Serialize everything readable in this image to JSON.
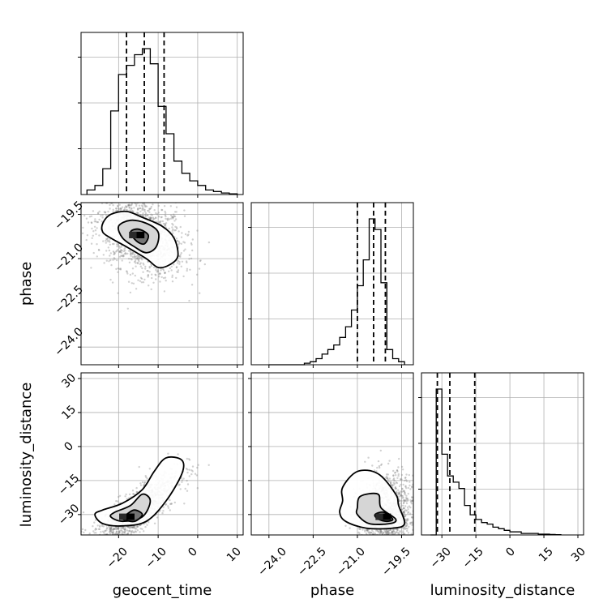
{
  "chart_data": {
    "type": "corner",
    "parameters": [
      "geocent_time",
      "phase",
      "luminosity_distance"
    ],
    "axis_labels": {
      "geocent_time": "geocent_time",
      "phase": "phase",
      "luminosity_distance": "luminosity_distance"
    },
    "ranges": {
      "geocent_time": [
        -29.5,
        11.5
      ],
      "phase": [
        -24.6,
        -19.1
      ],
      "luminosity_distance": [
        -39,
        32.5
      ]
    },
    "ticks": {
      "geocent_time": [
        -20,
        -10,
        0,
        10
      ],
      "phase": [
        -24.0,
        -22.5,
        -21.0,
        -19.5
      ],
      "luminosity_distance": [
        -30,
        -15,
        0,
        15,
        30
      ]
    },
    "tick_labels": {
      "geocent_time": [
        "−20",
        "−10",
        "0",
        "10"
      ],
      "phase": [
        "−24.0",
        "−22.5",
        "−21.0",
        "−19.5"
      ],
      "luminosity_distance": [
        "−30",
        "−15",
        "0",
        "15",
        "30"
      ]
    },
    "quantiles": {
      "geocent_time": [
        -18.0,
        -13.5,
        -8.5
      ],
      "phase": [
        -21.0,
        -20.45,
        -20.05
      ],
      "luminosity_distance": [
        -32.0,
        -26.5,
        -15.5
      ]
    },
    "histograms": {
      "geocent_time": {
        "edges": [
          -28,
          -26,
          -24,
          -22,
          -20,
          -18,
          -16,
          -14,
          -12,
          -10,
          -8,
          -6,
          -4,
          -2,
          0,
          2,
          4,
          6,
          8,
          10
        ],
        "counts": [
          0.03,
          0.06,
          0.17,
          0.55,
          0.79,
          0.85,
          0.92,
          0.96,
          0.86,
          0.58,
          0.4,
          0.22,
          0.14,
          0.09,
          0.06,
          0.03,
          0.02,
          0.01,
          0.005
        ]
      },
      "phase": {
        "edges": [
          -24.0,
          -23.8,
          -23.6,
          -23.4,
          -23.2,
          -23.0,
          -22.8,
          -22.6,
          -22.4,
          -22.2,
          -22.0,
          -21.8,
          -21.6,
          -21.4,
          -21.2,
          -21.0,
          -20.8,
          -20.6,
          -20.4,
          -20.2,
          -20.0,
          -19.8,
          -19.6,
          -19.4
        ],
        "counts": [
          0.0,
          0.0,
          0.0,
          0.0,
          0.0,
          0.0,
          0.01,
          0.02,
          0.04,
          0.07,
          0.1,
          0.13,
          0.18,
          0.25,
          0.36,
          0.52,
          0.69,
          0.96,
          0.89,
          0.54,
          0.1,
          0.04,
          0.02
        ]
      },
      "luminosity_distance": {
        "edges": [
          -35,
          -32.5,
          -30,
          -27.5,
          -25,
          -22.5,
          -20,
          -17.5,
          -15,
          -12.5,
          -10,
          -7.5,
          -5,
          -2.5,
          0,
          2.5,
          5,
          7.5,
          10,
          12.5,
          15,
          17.5,
          20,
          22.5
        ],
        "counts": [
          0.0,
          0.94,
          0.52,
          0.38,
          0.34,
          0.3,
          0.19,
          0.13,
          0.1,
          0.08,
          0.07,
          0.05,
          0.04,
          0.03,
          0.02,
          0.02,
          0.01,
          0.01,
          0.01,
          0.005,
          0.005,
          0.003,
          0.002
        ]
      }
    },
    "joint_densities": [
      {
        "x": "geocent_time",
        "y": "phase",
        "mode": [
          -14.5,
          -20.2
        ],
        "sigma_x": 5.5,
        "sigma_y": 0.7,
        "correlation": -0.35,
        "contour_levels": [
          [
            [
              -24,
              -19.8
            ],
            [
              -22,
              -19.5
            ],
            [
              -18,
              -19.4
            ],
            [
              -14,
              -19.6
            ],
            [
              -9,
              -19.9
            ],
            [
              -6,
              -20.3
            ],
            [
              -5,
              -20.9
            ],
            [
              -7,
              -21.2
            ],
            [
              -10,
              -21.3
            ],
            [
              -13,
              -21.0
            ],
            [
              -18,
              -20.6
            ],
            [
              -22,
              -20.3
            ],
            [
              -24,
              -20.1
            ]
          ],
          [
            [
              -20,
              -19.9
            ],
            [
              -17,
              -19.7
            ],
            [
              -13,
              -19.8
            ],
            [
              -10,
              -20.1
            ],
            [
              -10.5,
              -20.6
            ],
            [
              -13,
              -20.8
            ],
            [
              -16,
              -20.6
            ],
            [
              -19,
              -20.3
            ]
          ],
          [
            [
              -17,
              -20.1
            ],
            [
              -15,
              -20.0
            ],
            [
              -12.5,
              -20.2
            ],
            [
              -13.5,
              -20.5
            ],
            [
              -15.5,
              -20.4
            ]
          ]
        ]
      },
      {
        "x": "geocent_time",
        "y": "luminosity_distance",
        "mode": [
          -17,
          -31
        ],
        "sigma_x": 6.0,
        "sigma_y": 10.0,
        "correlation": 0.85,
        "contour_levels": [
          [
            [
              -26,
              -30
            ],
            [
              -24,
              -34
            ],
            [
              -19,
              -35
            ],
            [
              -13,
              -33
            ],
            [
              -8,
              -24
            ],
            [
              -4,
              -12
            ],
            [
              -4,
              -6
            ],
            [
              -8,
              -5
            ],
            [
              -11,
              -11
            ],
            [
              -14,
              -19
            ],
            [
              -19,
              -25
            ],
            [
              -24,
              -28
            ]
          ],
          [
            [
              -22,
              -31
            ],
            [
              -19,
              -33
            ],
            [
              -14,
              -31
            ],
            [
              -12,
              -24
            ],
            [
              -14,
              -21
            ],
            [
              -17,
              -26
            ],
            [
              -21,
              -29
            ]
          ],
          [
            [
              -19,
              -32
            ],
            [
              -16,
              -33
            ],
            [
              -14,
              -30
            ],
            [
              -16,
              -28
            ],
            [
              -18,
              -30
            ]
          ]
        ]
      },
      {
        "x": "phase",
        "y": "luminosity_distance",
        "mode": [
          -20.0,
          -31
        ],
        "sigma_x": 0.5,
        "sigma_y": 9.0,
        "correlation": 0.1,
        "contour_levels": [
          [
            [
              -21.6,
              -29
            ],
            [
              -21.4,
              -33
            ],
            [
              -20.7,
              -36
            ],
            [
              -19.8,
              -36
            ],
            [
              -19.4,
              -34
            ],
            [
              -19.6,
              -26
            ],
            [
              -19.7,
              -21
            ],
            [
              -20.3,
              -12
            ],
            [
              -21.0,
              -11
            ],
            [
              -21.5,
              -18
            ],
            [
              -21.5,
              -24
            ]
          ],
          [
            [
              -21.0,
              -30
            ],
            [
              -20.6,
              -34
            ],
            [
              -19.9,
              -34
            ],
            [
              -19.7,
              -32
            ],
            [
              -20.2,
              -27
            ],
            [
              -20.3,
              -21
            ],
            [
              -20.9,
              -22
            ],
            [
              -21.0,
              -27
            ]
          ],
          [
            [
              -20.3,
              -32
            ],
            [
              -20.0,
              -33
            ],
            [
              -19.8,
              -32
            ],
            [
              -20.1,
              -29
            ],
            [
              -20.4,
              -30
            ]
          ]
        ]
      }
    ]
  }
}
